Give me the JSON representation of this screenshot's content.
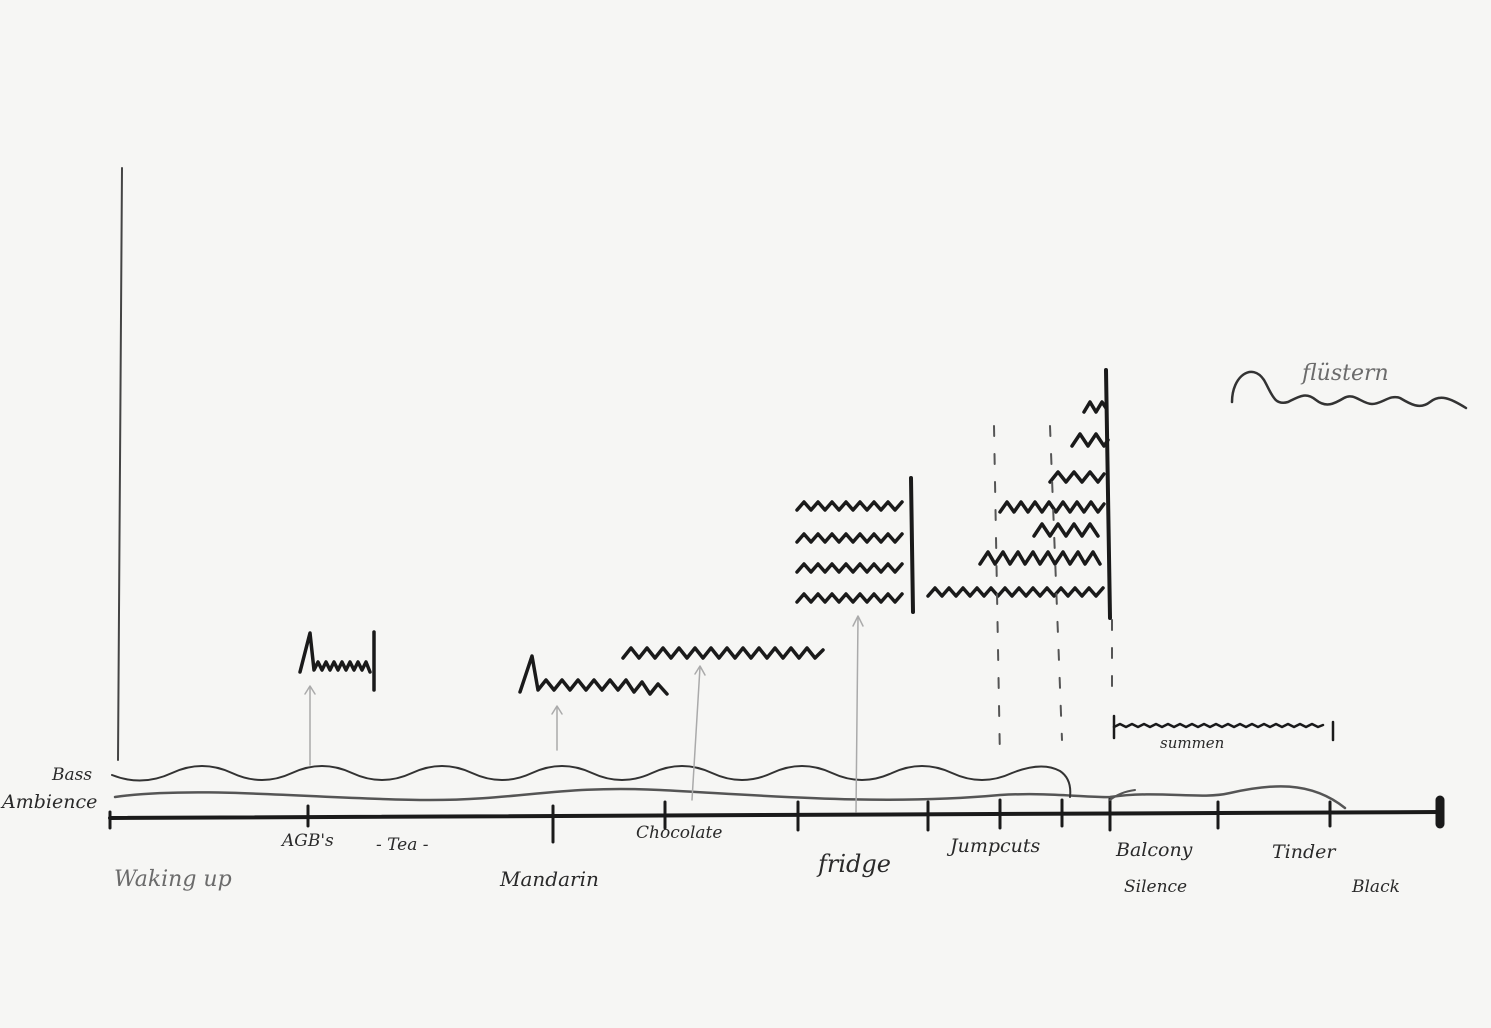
{
  "labels": {
    "bass": "Bass",
    "ambience": "Ambience",
    "agbs": "AGB's",
    "tea": "- Tea -",
    "chocolate": "Chocolate",
    "jumpcuts": "Jumpcuts",
    "balcony": "Balcony",
    "tinder": "Tinder",
    "waking_up": "Waking up",
    "mandarin": "Mandarin",
    "fridge": "fridge",
    "silence": "Silence",
    "black": "Black",
    "summen": "summen",
    "fluestern": "flüstern"
  },
  "colors": {
    "ink": "#1a1a1a",
    "pencil": "#555555",
    "faint": "#aaaaaa",
    "paper": "#f6f6f4"
  }
}
